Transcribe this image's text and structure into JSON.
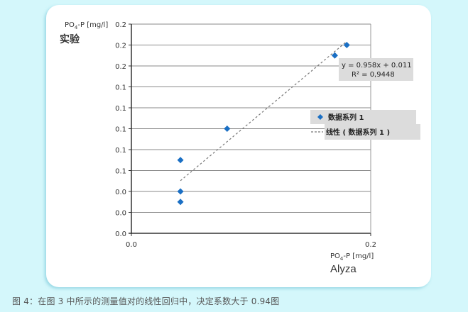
{
  "chart_data": {
    "type": "scatter",
    "title": "",
    "xlabel": "PO4-P [mg/l]",
    "xlabel_sub": "Alyza",
    "ylabel": "PO4-P [mg/l]",
    "ylabel_sub": "实验",
    "xlim": [
      0,
      0.2
    ],
    "ylim": [
      0,
      0.2
    ],
    "x_ticks": [
      "0.0",
      "0.2"
    ],
    "y_ticks": [
      "0.0",
      "0.0",
      "0.0",
      "0.1",
      "0.1",
      "0.1",
      "0.1",
      "0.1",
      "0.2",
      "0.2",
      "0.2"
    ],
    "grid": true,
    "series": [
      {
        "name": "数据系列 1",
        "marker": "diamond",
        "color": "#1a6fc4",
        "points": [
          {
            "x": 0.041,
            "y": 0.07
          },
          {
            "x": 0.041,
            "y": 0.04
          },
          {
            "x": 0.041,
            "y": 0.03
          },
          {
            "x": 0.08,
            "y": 0.1
          },
          {
            "x": 0.17,
            "y": 0.17
          },
          {
            "x": 0.18,
            "y": 0.18
          }
        ]
      }
    ],
    "trendline": {
      "name": "线性（数据系列 1）",
      "type": "linear",
      "slope": 0.958,
      "intercept": 0.011,
      "x_range": [
        0.041,
        0.18
      ],
      "equation": "y = 0.958x + 0.011",
      "r_squared": "R² = 0,9448"
    },
    "legend": {
      "position": "right",
      "entries": [
        "数据系列 1",
        "线性（数据系列 1）"
      ]
    }
  },
  "labels": {
    "y_axis_title": "PO",
    "y_axis_sub": "4",
    "y_axis_rest": "-P [mg/l]",
    "y_axis_cn": "实验",
    "x_axis_title": "PO",
    "x_axis_sub": "4",
    "x_axis_rest": "-P [mg/l]",
    "x_axis_brand": "Alyza",
    "x_tick_0": "0.0",
    "x_tick_1": "0.2",
    "equation": "y = 0.958x + 0.011",
    "r_squared": "R² = 0,9448",
    "legend_series": "数据系列 1",
    "legend_trend": "线性 ( 数据系列 1 )"
  },
  "caption": "图 4：在图 3 中所示的测量值对的线性回归中，决定系数大于 0.94图"
}
